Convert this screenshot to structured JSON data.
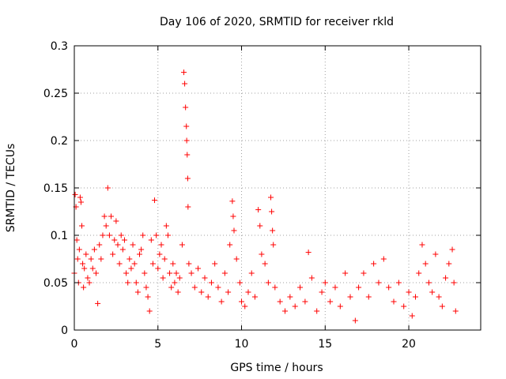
{
  "chart_data": {
    "type": "scatter",
    "title": "Day 106 of 2020, SRMTID for receiver rkld",
    "xlabel": "GPS time / hours",
    "ylabel": "SRMTID / TECUs",
    "xlim": [
      0,
      24.3
    ],
    "ylim": [
      0,
      0.3
    ],
    "x_ticks": [
      0,
      5,
      10,
      15,
      20
    ],
    "x_tick_labels": [
      "0",
      "5",
      "10",
      "15",
      "20"
    ],
    "y_ticks": [
      0,
      0.05,
      0.1,
      0.15,
      0.2,
      0.25,
      0.3
    ],
    "y_tick_labels": [
      "0",
      "0.05",
      "0.1",
      "0.15",
      "0.2",
      "0.25",
      "0.3"
    ],
    "grid": true,
    "marker": "+",
    "series": [
      {
        "name": "SRMTID",
        "color": "#ff0000",
        "points": [
          [
            0.0,
            0.06
          ],
          [
            0.05,
            0.143
          ],
          [
            0.1,
            0.13
          ],
          [
            0.15,
            0.095
          ],
          [
            0.2,
            0.075
          ],
          [
            0.25,
            0.05
          ],
          [
            0.3,
            0.085
          ],
          [
            0.35,
            0.14
          ],
          [
            0.4,
            0.135
          ],
          [
            0.45,
            0.11
          ],
          [
            0.5,
            0.07
          ],
          [
            0.55,
            0.045
          ],
          [
            0.6,
            0.065
          ],
          [
            0.7,
            0.08
          ],
          [
            0.8,
            0.055
          ],
          [
            0.9,
            0.05
          ],
          [
            1.0,
            0.075
          ],
          [
            1.1,
            0.065
          ],
          [
            1.2,
            0.085
          ],
          [
            1.3,
            0.06
          ],
          [
            1.4,
            0.028
          ],
          [
            1.5,
            0.09
          ],
          [
            1.6,
            0.075
          ],
          [
            1.7,
            0.1
          ],
          [
            1.8,
            0.12
          ],
          [
            1.9,
            0.11
          ],
          [
            2.0,
            0.15
          ],
          [
            2.1,
            0.1
          ],
          [
            2.2,
            0.12
          ],
          [
            2.3,
            0.08
          ],
          [
            2.4,
            0.095
          ],
          [
            2.5,
            0.115
          ],
          [
            2.6,
            0.09
          ],
          [
            2.7,
            0.07
          ],
          [
            2.8,
            0.1
          ],
          [
            2.9,
            0.085
          ],
          [
            3.0,
            0.095
          ],
          [
            3.1,
            0.06
          ],
          [
            3.2,
            0.05
          ],
          [
            3.3,
            0.075
          ],
          [
            3.4,
            0.065
          ],
          [
            3.5,
            0.09
          ],
          [
            3.6,
            0.07
          ],
          [
            3.7,
            0.05
          ],
          [
            3.8,
            0.04
          ],
          [
            3.9,
            0.08
          ],
          [
            4.0,
            0.085
          ],
          [
            4.1,
            0.1
          ],
          [
            4.2,
            0.06
          ],
          [
            4.3,
            0.045
          ],
          [
            4.4,
            0.035
          ],
          [
            4.5,
            0.02
          ],
          [
            4.6,
            0.095
          ],
          [
            4.7,
            0.07
          ],
          [
            4.8,
            0.137
          ],
          [
            4.9,
            0.1
          ],
          [
            5.0,
            0.065
          ],
          [
            5.1,
            0.08
          ],
          [
            5.2,
            0.09
          ],
          [
            5.3,
            0.055
          ],
          [
            5.4,
            0.075
          ],
          [
            5.5,
            0.11
          ],
          [
            5.6,
            0.1
          ],
          [
            5.7,
            0.06
          ],
          [
            5.8,
            0.045
          ],
          [
            5.9,
            0.07
          ],
          [
            6.0,
            0.05
          ],
          [
            6.1,
            0.06
          ],
          [
            6.2,
            0.04
          ],
          [
            6.3,
            0.055
          ],
          [
            6.45,
            0.09
          ],
          [
            6.55,
            0.272
          ],
          [
            6.6,
            0.26
          ],
          [
            6.65,
            0.235
          ],
          [
            6.7,
            0.215
          ],
          [
            6.72,
            0.2
          ],
          [
            6.75,
            0.185
          ],
          [
            6.78,
            0.16
          ],
          [
            6.8,
            0.13
          ],
          [
            6.85,
            0.07
          ],
          [
            7.0,
            0.06
          ],
          [
            7.2,
            0.045
          ],
          [
            7.4,
            0.065
          ],
          [
            7.6,
            0.04
          ],
          [
            7.8,
            0.055
          ],
          [
            8.0,
            0.035
          ],
          [
            8.2,
            0.05
          ],
          [
            8.4,
            0.07
          ],
          [
            8.6,
            0.045
          ],
          [
            8.8,
            0.03
          ],
          [
            9.0,
            0.06
          ],
          [
            9.2,
            0.04
          ],
          [
            9.3,
            0.09
          ],
          [
            9.45,
            0.136
          ],
          [
            9.5,
            0.12
          ],
          [
            9.55,
            0.105
          ],
          [
            9.7,
            0.075
          ],
          [
            9.9,
            0.05
          ],
          [
            10.0,
            0.03
          ],
          [
            10.2,
            0.025
          ],
          [
            10.4,
            0.04
          ],
          [
            10.6,
            0.06
          ],
          [
            10.8,
            0.035
          ],
          [
            11.0,
            0.127
          ],
          [
            11.1,
            0.11
          ],
          [
            11.2,
            0.08
          ],
          [
            11.4,
            0.07
          ],
          [
            11.6,
            0.05
          ],
          [
            11.75,
            0.14
          ],
          [
            11.8,
            0.125
          ],
          [
            11.85,
            0.105
          ],
          [
            11.9,
            0.09
          ],
          [
            12.0,
            0.045
          ],
          [
            12.3,
            0.03
          ],
          [
            12.6,
            0.02
          ],
          [
            12.9,
            0.035
          ],
          [
            13.2,
            0.025
          ],
          [
            13.5,
            0.045
          ],
          [
            13.8,
            0.03
          ],
          [
            14.0,
            0.082
          ],
          [
            14.2,
            0.055
          ],
          [
            14.5,
            0.02
          ],
          [
            14.8,
            0.04
          ],
          [
            15.0,
            0.05
          ],
          [
            15.3,
            0.03
          ],
          [
            15.6,
            0.045
          ],
          [
            15.9,
            0.025
          ],
          [
            16.2,
            0.06
          ],
          [
            16.5,
            0.035
          ],
          [
            16.8,
            0.01
          ],
          [
            17.0,
            0.045
          ],
          [
            17.3,
            0.06
          ],
          [
            17.6,
            0.035
          ],
          [
            17.9,
            0.07
          ],
          [
            18.2,
            0.05
          ],
          [
            18.5,
            0.075
          ],
          [
            18.8,
            0.045
          ],
          [
            19.1,
            0.03
          ],
          [
            19.4,
            0.05
          ],
          [
            19.7,
            0.025
          ],
          [
            20.0,
            0.04
          ],
          [
            20.2,
            0.015
          ],
          [
            20.4,
            0.035
          ],
          [
            20.6,
            0.06
          ],
          [
            20.8,
            0.09
          ],
          [
            21.0,
            0.07
          ],
          [
            21.2,
            0.05
          ],
          [
            21.4,
            0.04
          ],
          [
            21.6,
            0.08
          ],
          [
            21.8,
            0.035
          ],
          [
            22.0,
            0.025
          ],
          [
            22.2,
            0.055
          ],
          [
            22.4,
            0.07
          ],
          [
            22.6,
            0.085
          ],
          [
            22.7,
            0.05
          ],
          [
            22.8,
            0.02
          ]
        ]
      }
    ]
  }
}
